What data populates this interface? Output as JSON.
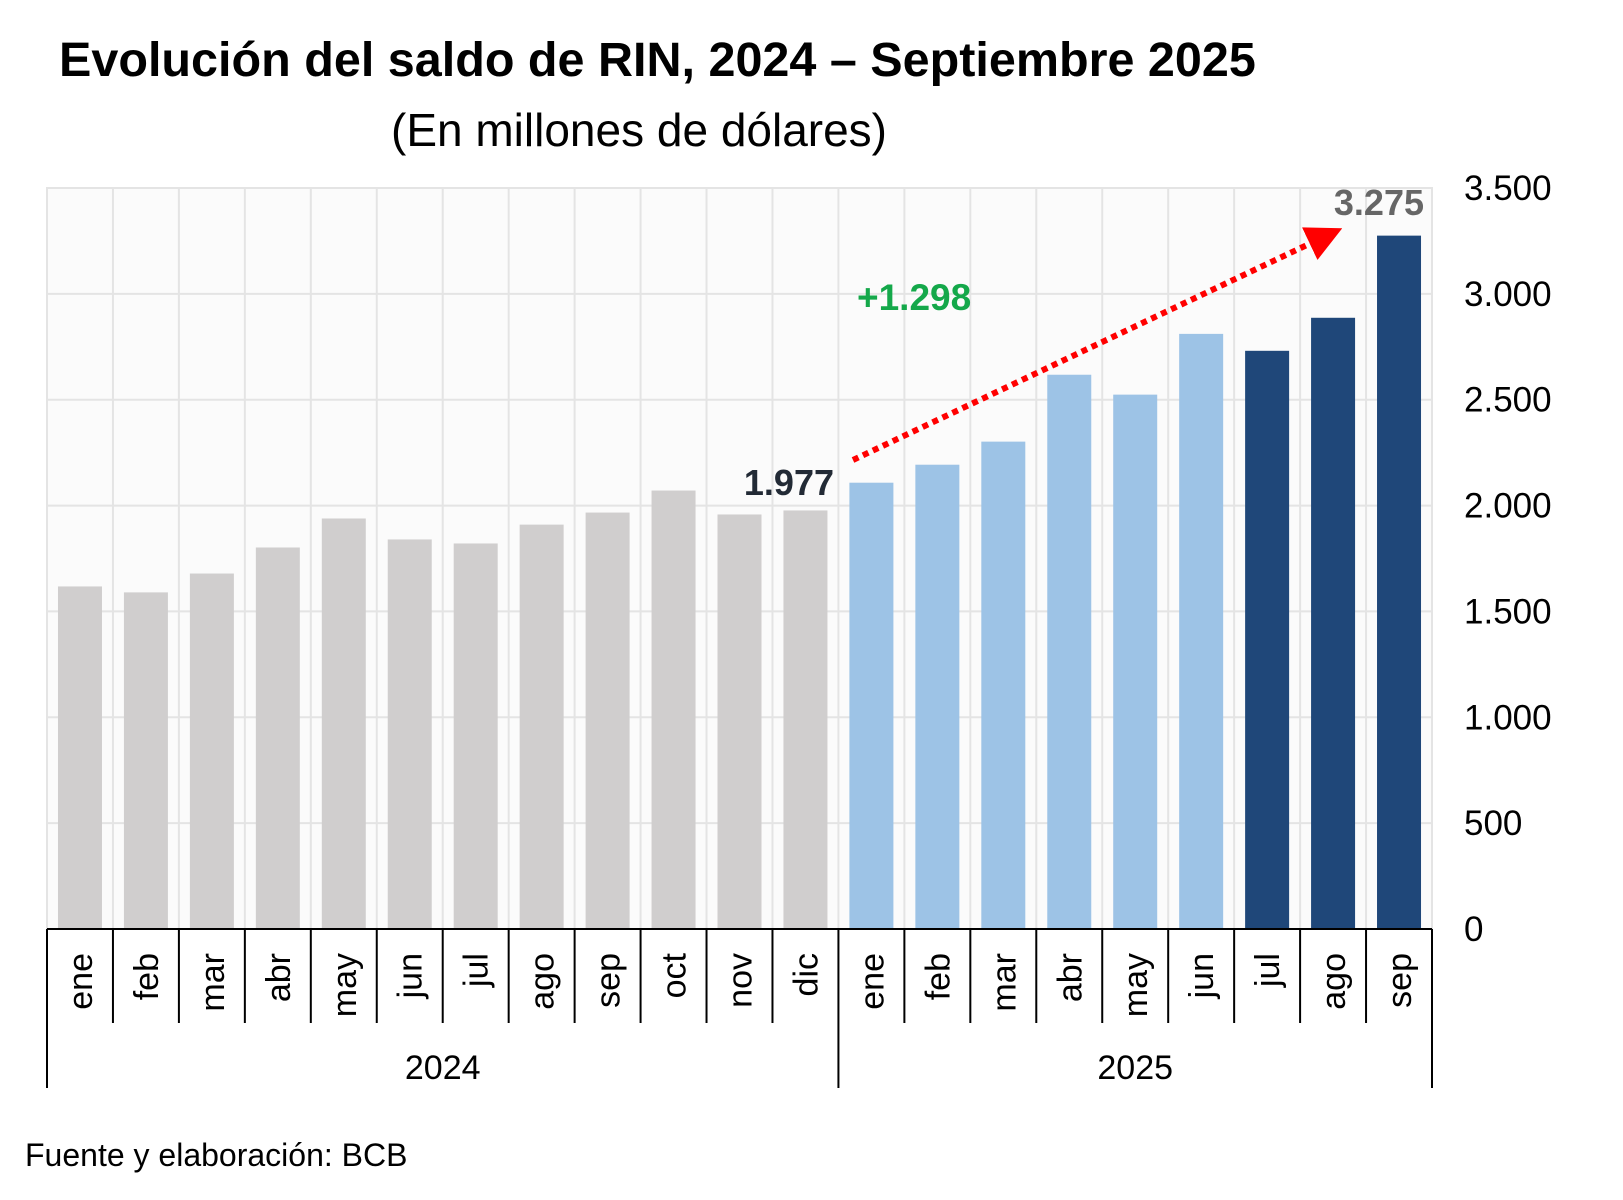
{
  "chart_data": {
    "type": "bar",
    "title": "Evolución del saldo de RIN, 2024 – Septiembre 2025",
    "subtitle": "(En millones de dólares)",
    "xlabel": "",
    "ylabel": "",
    "ylim": [
      0,
      3500
    ],
    "y_ticks": [
      0,
      500,
      1000,
      1500,
      2000,
      2500,
      3000,
      3500
    ],
    "y_tick_labels": [
      "0",
      "500",
      "1.000",
      "1.500",
      "2.000",
      "2.500",
      "3.000",
      "3.500"
    ],
    "y_axis_side": "right",
    "grid": true,
    "groups": [
      {
        "year": "2024",
        "categories": [
          "ene",
          "feb",
          "mar",
          "abr",
          "may",
          "jun",
          "jul",
          "ago",
          "sep",
          "oct",
          "nov",
          "dic"
        ],
        "values": [
          1618,
          1590,
          1679,
          1802,
          1939,
          1840,
          1821,
          1910,
          1967,
          2071,
          1958,
          1977
        ],
        "colors": [
          "#d0cece",
          "#d0cece",
          "#d0cece",
          "#d0cece",
          "#d0cece",
          "#d0cece",
          "#d0cece",
          "#d0cece",
          "#d0cece",
          "#d0cece",
          "#d0cece",
          "#d0cece"
        ]
      },
      {
        "year": "2025",
        "categories": [
          "ene",
          "feb",
          "mar",
          "abr",
          "may",
          "jun",
          "jul",
          "ago",
          "sep"
        ],
        "values": [
          2108,
          2193,
          2302,
          2618,
          2524,
          2811,
          2731,
          2887,
          3275
        ],
        "colors": [
          "#9dc3e6",
          "#9dc3e6",
          "#9dc3e6",
          "#9dc3e6",
          "#9dc3e6",
          "#9dc3e6",
          "#1f4779",
          "#1f4779",
          "#1f4779"
        ]
      }
    ],
    "annotations": {
      "start_label": {
        "text": "1.977",
        "value": 1977,
        "color": "#222a35"
      },
      "end_label": {
        "text": "3.275",
        "value": 3275,
        "color": "#666666"
      },
      "change_label": {
        "text": "+1.298",
        "color": "#14a84a"
      },
      "arrow": {
        "style": "dotted",
        "color": "#ff0000",
        "from": "dic 2024",
        "to": "sep 2025"
      }
    }
  },
  "footer": {
    "source": "Fuente y elaboración: BCB"
  },
  "colors": {
    "plot_background": "#fbfbfb",
    "grid": "#e4e4e4",
    "axis": "#000000"
  }
}
